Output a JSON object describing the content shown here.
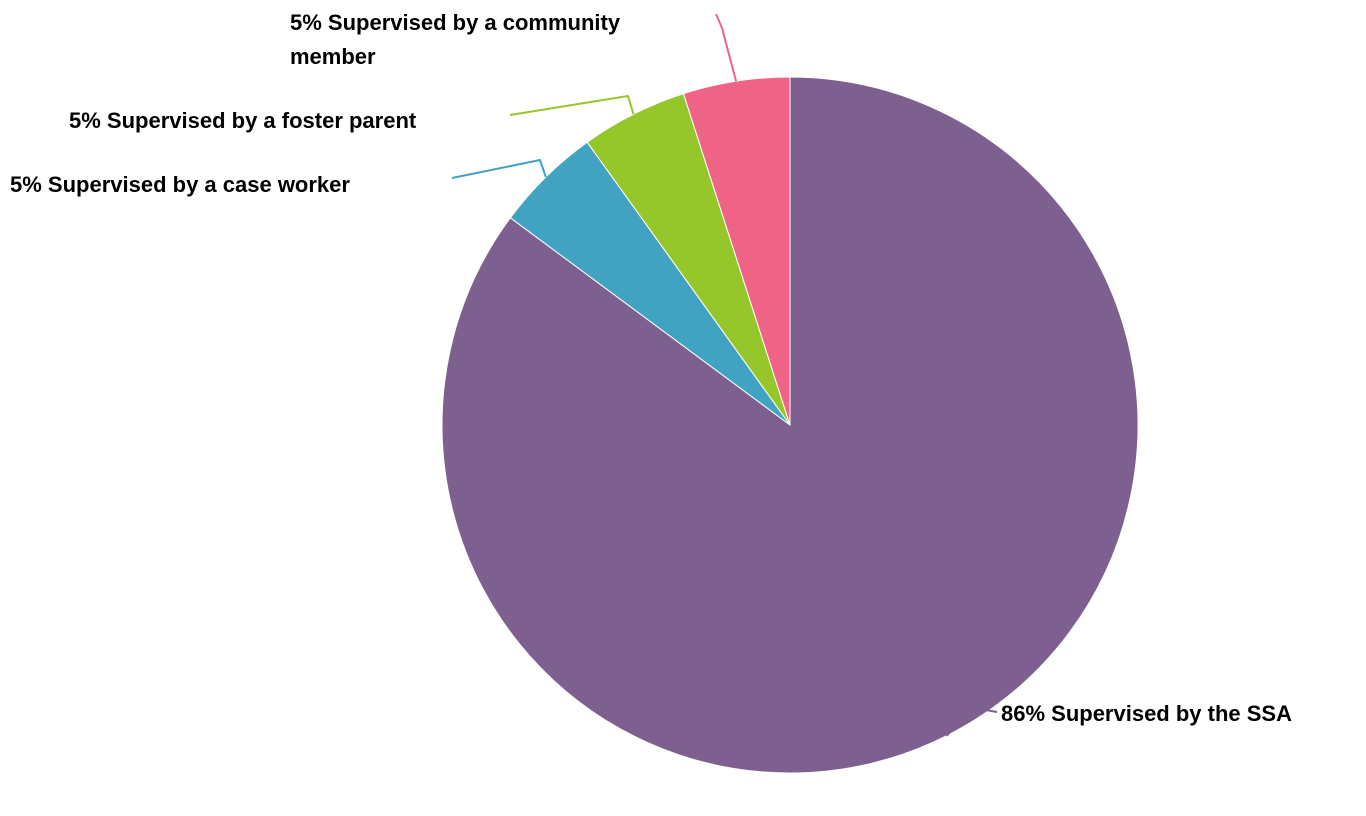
{
  "chart_data": {
    "type": "pie",
    "title": "",
    "slices": [
      {
        "label": "Supervised by the SSA",
        "value": 86,
        "display": "86% Supervised by the SSA",
        "color": "#7d608f"
      },
      {
        "label": "Supervised by a case worker",
        "value": 5,
        "display": "5% Supervised by a case worker",
        "color": "#41a2c2"
      },
      {
        "label": "Supervised by a foster parent",
        "value": 5,
        "display": "5% Supervised by a foster parent",
        "color": "#96c72a"
      },
      {
        "label": "Supervised by a community member",
        "value": 5,
        "display": "5% Supervised by a community member",
        "color": "#ef6387"
      }
    ],
    "legend": "none"
  }
}
